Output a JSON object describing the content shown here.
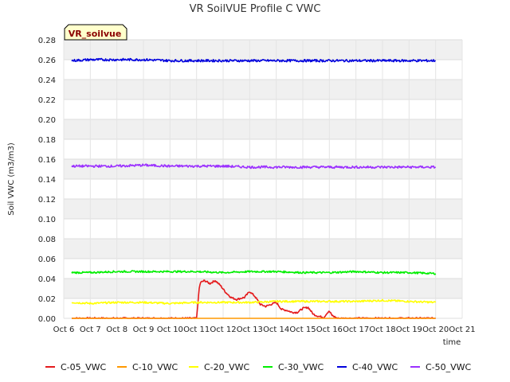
{
  "chart_data": {
    "type": "line",
    "title": "VR SoilVUE Profile C VWC",
    "xlabel": "time",
    "ylabel": "Soil VWC (m3/m3)",
    "badge": "VR_soilvue",
    "xlim": [
      6,
      21
    ],
    "ylim": [
      0,
      0.28
    ],
    "x_ticks": [
      6,
      7,
      8,
      9,
      10,
      11,
      12,
      13,
      14,
      15,
      16,
      17,
      18,
      19,
      20,
      21
    ],
    "x_tick_labels": [
      "Oct 6",
      "Oct 7",
      "Oct 8",
      "Oct 9",
      "Oct 10",
      "Oct 11",
      "Oct 12",
      "Oct 13",
      "Oct 14",
      "Oct 15",
      "Oct 16",
      "Oct 17",
      "Oct 18",
      "Oct 19",
      "Oct 20",
      "Oct 21"
    ],
    "y_ticks": [
      0,
      0.02,
      0.04,
      0.06,
      0.08,
      0.1,
      0.12,
      0.14,
      0.16,
      0.18,
      0.2,
      0.22,
      0.24,
      0.26,
      0.28
    ],
    "y_tick_labels": [
      "0.00",
      "0.02",
      "0.04",
      "0.06",
      "0.08",
      "0.10",
      "0.12",
      "0.14",
      "0.16",
      "0.18",
      "0.20",
      "0.22",
      "0.24",
      "0.26",
      "0.28"
    ],
    "grid": true,
    "legend_position": "bottom",
    "series": [
      {
        "name": "C-05_VWC",
        "color": "#e41a1c",
        "x": [
          6.3,
          11.0,
          11.1,
          11.15,
          11.3,
          11.5,
          11.7,
          11.9,
          12.1,
          12.3,
          12.5,
          12.8,
          13.0,
          13.2,
          13.4,
          13.6,
          13.8,
          14.0,
          14.2,
          14.4,
          14.6,
          14.8,
          15.0,
          15.2,
          15.4,
          15.6,
          15.8,
          15.9,
          16.0,
          16.1,
          16.3,
          20.0
        ],
        "values": [
          0.0,
          0.0,
          0.03,
          0.036,
          0.038,
          0.035,
          0.038,
          0.033,
          0.026,
          0.021,
          0.019,
          0.021,
          0.027,
          0.022,
          0.014,
          0.012,
          0.014,
          0.016,
          0.009,
          0.008,
          0.006,
          0.006,
          0.01,
          0.011,
          0.004,
          0.002,
          0.001,
          0.005,
          0.007,
          0.003,
          0.0,
          0.0
        ]
      },
      {
        "name": "C-10_VWC",
        "color": "#ff9900",
        "x": [
          6.3,
          20.0
        ],
        "values": [
          0.0,
          0.0
        ]
      },
      {
        "name": "C-20_VWC",
        "color": "#ffff00",
        "x": [
          6.3,
          7.0,
          8.0,
          9.0,
          10.0,
          11.0,
          12.0,
          13.0,
          14.0,
          15.0,
          16.0,
          17.0,
          18.0,
          19.0,
          20.0
        ],
        "values": [
          0.016,
          0.015,
          0.016,
          0.016,
          0.015,
          0.016,
          0.016,
          0.016,
          0.017,
          0.017,
          0.017,
          0.017,
          0.018,
          0.017,
          0.016
        ]
      },
      {
        "name": "C-30_VWC",
        "color": "#00ee00",
        "x": [
          6.3,
          7.0,
          8.0,
          9.0,
          10.0,
          11.0,
          12.0,
          13.0,
          14.0,
          15.0,
          16.0,
          17.0,
          18.0,
          19.0,
          20.0
        ],
        "values": [
          0.046,
          0.046,
          0.047,
          0.047,
          0.047,
          0.047,
          0.046,
          0.047,
          0.047,
          0.046,
          0.046,
          0.047,
          0.046,
          0.046,
          0.045
        ]
      },
      {
        "name": "C-40_VWC",
        "color": "#0000dd",
        "x": [
          6.3,
          7.0,
          8.0,
          9.0,
          10.0,
          11.0,
          12.0,
          13.0,
          14.0,
          15.0,
          16.0,
          16.8,
          17.0,
          18.0,
          19.0,
          20.0
        ],
        "values": [
          0.259,
          0.26,
          0.26,
          0.26,
          0.259,
          0.259,
          0.259,
          0.259,
          0.259,
          0.259,
          0.259,
          0.259,
          0.259,
          0.259,
          0.259,
          0.259
        ]
      },
      {
        "name": "C-50_VWC",
        "color": "#9b30ff",
        "x": [
          6.3,
          7.0,
          8.0,
          9.0,
          10.0,
          11.0,
          12.0,
          13.0,
          14.0,
          15.0,
          16.0,
          17.0,
          18.0,
          19.0,
          20.0
        ],
        "values": [
          0.153,
          0.153,
          0.153,
          0.154,
          0.153,
          0.153,
          0.153,
          0.152,
          0.152,
          0.152,
          0.152,
          0.152,
          0.152,
          0.152,
          0.152
        ]
      }
    ]
  }
}
